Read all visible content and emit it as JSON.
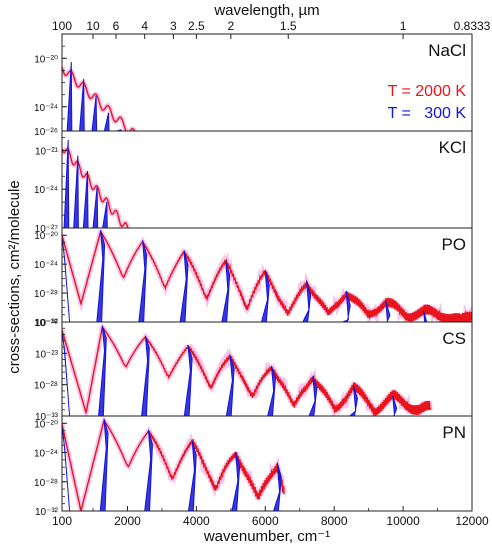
{
  "chart_data": {
    "type": "line",
    "xlabel_bottom": "wavenumber, cm⁻¹",
    "xlabel_top": "wavelength, µm",
    "ylabel": "cross-sections, cm²/molecule",
    "x_range": [
      100,
      12000
    ],
    "x_ticks": [
      100,
      2000,
      4000,
      6000,
      8000,
      10000,
      12000
    ],
    "top_ticks": [
      {
        "label": "100",
        "wavenumber": 100
      },
      {
        "label": "10",
        "wavenumber": 1000
      },
      {
        "label": "6",
        "wavenumber": 1667
      },
      {
        "label": "4",
        "wavenumber": 2500
      },
      {
        "label": "3",
        "wavenumber": 3333
      },
      {
        "label": "2.5",
        "wavenumber": 4000
      },
      {
        "label": "2",
        "wavenumber": 5000
      },
      {
        "label": "1.5",
        "wavenumber": 6667
      },
      {
        "label": "1",
        "wavenumber": 10000
      },
      {
        "label": "0.8333",
        "wavenumber": 12000
      }
    ],
    "series_colors": {
      "T_2000K": "#e8141b",
      "T_300K": "#1414d8",
      "halo": "#f0a0e0"
    },
    "legend": {
      "line1": "T = 2000 K",
      "line2": "T =   300 K",
      "placement": "right, first panel"
    },
    "panels": [
      {
        "molecule": "NaCl",
        "y_log_range": [
          -26,
          -18
        ],
        "y_ticks": [
          {
            "exp": -20,
            "label": "10⁻²⁰"
          },
          {
            "exp": -24,
            "label": "10⁻²⁴"
          },
          {
            "exp": -26,
            "label": "10⁻²⁶"
          }
        ],
        "peak_log": -20.3,
        "band_centers": [
          370,
          730,
          1090,
          1450,
          1810
        ],
        "band_decay": 1.4,
        "end_2000K": 2250,
        "end_300K": 1900,
        "valley": 0.4
      },
      {
        "molecule": "KCl",
        "y_log_range": [
          -27,
          -19.5
        ],
        "y_ticks": [
          {
            "exp": -21,
            "label": "10⁻²¹"
          },
          {
            "exp": -24,
            "label": "10⁻²⁴"
          },
          {
            "exp": -27,
            "label": "10⁻²⁷"
          }
        ],
        "peak_log": -20.2,
        "band_centers": [
          280,
          560,
          840,
          1120,
          1400
        ],
        "band_decay": 1.2,
        "end_2000K": 2100,
        "end_300K": 1700,
        "valley": 0.35
      },
      {
        "molecule": "PO",
        "y_log_range": [
          -32,
          -19
        ],
        "y_ticks": [
          {
            "exp": -20,
            "label": "10⁻²⁰"
          },
          {
            "exp": -24,
            "label": "10⁻²⁴"
          },
          {
            "exp": -28,
            "label": "10⁻²⁸"
          },
          {
            "exp": -32,
            "label": "10⁻³²"
          }
        ],
        "peak_log": -19.5,
        "band_centers": [
          1220,
          2440,
          3640,
          4850,
          6000,
          7200,
          8350,
          9500,
          10600,
          11700
        ],
        "band_decay": 1.4,
        "rot_min_log": -29.5,
        "rot_min_x": 650,
        "end_2000K": 12000,
        "end_300K": 11000
      },
      {
        "molecule": "CS",
        "y_log_range": [
          -33,
          -18
        ],
        "y_ticks": [
          {
            "exp": -18,
            "label": "10⁻¹⁸"
          },
          {
            "exp": -23,
            "label": "10⁻²³"
          },
          {
            "exp": -28,
            "label": "10⁻²⁸"
          },
          {
            "exp": -33,
            "label": "10⁻³³"
          }
        ],
        "peak_log": -18.8,
        "band_centers": [
          1270,
          2520,
          3760,
          4980,
          6180,
          7380,
          8560,
          9700
        ],
        "band_decay": 1.6,
        "rot_min_log": -32.5,
        "rot_min_x": 800,
        "end_2000K": 10800,
        "end_300K": 10200
      },
      {
        "molecule": "PN",
        "y_log_range": [
          -32,
          -19
        ],
        "y_ticks": [
          {
            "exp": -20,
            "label": "10⁻²⁰"
          },
          {
            "exp": -24,
            "label": "10⁻²⁴"
          },
          {
            "exp": -28,
            "label": "10⁻²⁸"
          },
          {
            "exp": -32,
            "label": "10⁻³²"
          }
        ],
        "peak_log": -19.6,
        "band_centers": [
          1320,
          2610,
          3880,
          5140,
          6350
        ],
        "band_decay": 1.5,
        "rot_min_log": -32,
        "rot_min_x": 650,
        "end_2000K": 6550,
        "end_300K": 6450
      }
    ]
  }
}
